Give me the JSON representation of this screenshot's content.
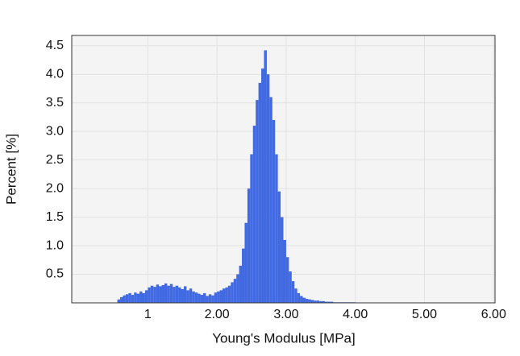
{
  "chart_data": {
    "type": "histogram",
    "x_label": "Young's Modulus [MPa]",
    "y_label": "Percent [%]",
    "color": "#4169e1",
    "grid": true,
    "xlim": [
      -0.1,
      6.02
    ],
    "ylim": [
      0,
      4.68
    ],
    "xticks": [
      1,
      {
        "value": 2,
        "label": "2.00"
      },
      {
        "value": 3,
        "label": "3.00"
      },
      {
        "value": 4,
        "label": "4.00"
      },
      {
        "value": 5,
        "label": "5.00"
      },
      {
        "value": 6,
        "label": "6.00"
      }
    ],
    "yticks": [
      0.5,
      {
        "value": 1,
        "label": "1.0"
      },
      1.5,
      {
        "value": 2,
        "label": "2.0"
      },
      2.5,
      {
        "value": 3,
        "label": "3.0"
      },
      3.5,
      {
        "value": 4,
        "label": "4.0"
      },
      4.5
    ],
    "bins": [
      0.56,
      0.6,
      0.64,
      0.68,
      0.72,
      0.76,
      0.8,
      0.84,
      0.88,
      0.92,
      0.96,
      1,
      1.04,
      1.08,
      1.12,
      1.16,
      1.2,
      1.24,
      1.28,
      1.32,
      1.36,
      1.4,
      1.44,
      1.48,
      1.52,
      1.56,
      1.6,
      1.64,
      1.68,
      1.72,
      1.76,
      1.8,
      1.84,
      1.88,
      1.92,
      1.96,
      2,
      2.04,
      2.08,
      2.12,
      2.16,
      2.2,
      2.24,
      2.28,
      2.32,
      2.36,
      2.4,
      2.44,
      2.48,
      2.52,
      2.56,
      2.6,
      2.64,
      2.68,
      2.72,
      2.76,
      2.8,
      2.84,
      2.88,
      2.92,
      2.96,
      3,
      3.04,
      3.08,
      3.12,
      3.16,
      3.2,
      3.24,
      3.28,
      3.32,
      3.36,
      3.4,
      3.44,
      3.48,
      3.52,
      3.56,
      3.6,
      3.64,
      3.68,
      3.72,
      3.76,
      3.8,
      3.84,
      3.88,
      3.92,
      3.96,
      4
    ],
    "values": [
      0.06,
      0.1,
      0.13,
      0.15,
      0.17,
      0.14,
      0.18,
      0.16,
      0.2,
      0.17,
      0.22,
      0.27,
      0.3,
      0.28,
      0.32,
      0.29,
      0.31,
      0.34,
      0.3,
      0.33,
      0.28,
      0.3,
      0.27,
      0.24,
      0.29,
      0.22,
      0.25,
      0.2,
      0.18,
      0.16,
      0.14,
      0.17,
      0.12,
      0.15,
      0.13,
      0.18,
      0.2,
      0.22,
      0.25,
      0.27,
      0.3,
      0.36,
      0.42,
      0.5,
      0.65,
      0.95,
      1.4,
      2.0,
      2.6,
      3.1,
      3.55,
      3.85,
      4.1,
      4.42,
      4.0,
      3.6,
      3.2,
      2.6,
      1.95,
      1.5,
      1.1,
      0.8,
      0.55,
      0.38,
      0.25,
      0.17,
      0.12,
      0.09,
      0.07,
      0.06,
      0.05,
      0.04,
      0.04,
      0.03,
      0.03,
      0.02,
      0.02,
      0.02,
      0.01,
      0.01,
      0.01,
      0.01,
      0.01,
      0.01,
      0.01,
      0.01
    ]
  }
}
